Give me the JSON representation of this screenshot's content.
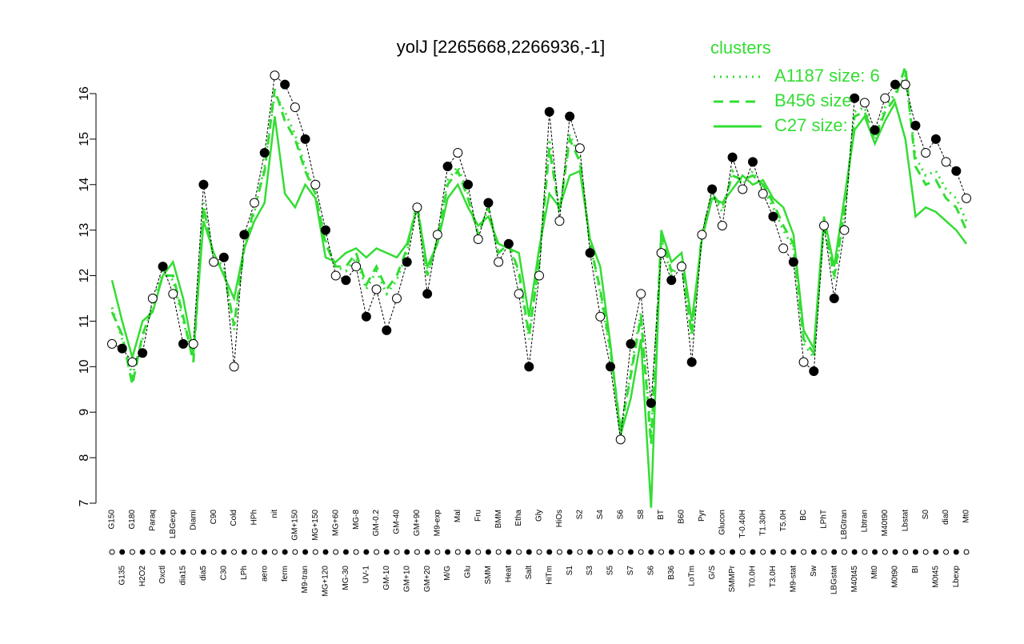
{
  "chart_data": {
    "type": "line",
    "title": "yolJ [2265668,2266936,-1]",
    "legend_title": "clusters",
    "categories": [
      "G150",
      "G135",
      "G180",
      "H2O2",
      "Paraq",
      "Oxctl",
      "LBGexp",
      "dia15",
      "Diami",
      "dia5",
      "C90",
      "C30",
      "Cold",
      "LPh",
      "HPh",
      "aero",
      "nit",
      "ferm",
      "GM+150",
      "M9-tran",
      "MG+150",
      "MG+120",
      "MG+60",
      "MG-30",
      "MG-8",
      "UV-1",
      "GM-0.2",
      "GM-10",
      "GM-40",
      "GM+10",
      "GM+90",
      "GM+20",
      "M9-exp",
      "M/G",
      "Mal",
      "Glu",
      "Fru",
      "SMM",
      "BMM",
      "Heat",
      "Etha",
      "Salt",
      "Gly",
      "HiTm",
      "HiOs",
      "S1",
      "S2",
      "S3",
      "S4",
      "S5",
      "S6",
      "S7",
      "S8",
      "S6",
      "BT",
      "B36",
      "B60",
      "LoTm",
      "Pyr",
      "G/S",
      "Glucon",
      "SMMPr",
      "T-0.40H",
      "T0.0H",
      "T1.30H",
      "T3.0H",
      "T5.0H",
      "M9-stat",
      "BC",
      "Sw",
      "LPhT",
      "LBGstat",
      "LBGtran",
      "M40t45",
      "Lbtran",
      "Mt0",
      "M40t90",
      "M0t90",
      "Lbstat",
      "BI",
      "S0",
      "M0t45",
      "dia0",
      "Lbexp",
      "Mt0"
    ],
    "values": [
      10.5,
      10.4,
      10.1,
      10.3,
      11.5,
      12.2,
      11.6,
      10.5,
      10.5,
      14.0,
      12.3,
      12.4,
      10.0,
      12.9,
      13.6,
      14.7,
      16.4,
      16.2,
      15.7,
      15.0,
      14.0,
      13.0,
      12.0,
      11.9,
      12.2,
      11.1,
      11.7,
      10.8,
      11.5,
      12.3,
      13.5,
      11.6,
      12.9,
      14.4,
      14.7,
      14.0,
      12.8,
      13.6,
      12.3,
      12.7,
      11.6,
      10.0,
      12.0,
      15.6,
      13.2,
      15.5,
      14.8,
      12.5,
      11.1,
      10.0,
      8.4,
      10.5,
      11.6,
      9.2,
      12.5,
      11.9,
      12.2,
      10.1,
      12.9,
      13.9,
      13.1,
      14.6,
      13.9,
      14.5,
      13.8,
      13.3,
      12.6,
      12.3,
      10.1,
      9.9,
      13.1,
      11.5,
      13.0,
      15.9,
      15.8,
      15.2,
      15.9,
      16.2,
      16.2,
      15.3,
      14.7,
      15.0,
      14.5,
      14.3,
      13.7
    ],
    "point_color": "#000000",
    "series": [
      {
        "name": "A1187 size: 6",
        "style": "dotted",
        "color": "#33dd33",
        "values": [
          11.3,
          10.6,
          9.8,
          10.6,
          11.4,
          12.1,
          11.9,
          11.0,
          10.2,
          13.6,
          12.4,
          12.2,
          10.8,
          12.6,
          13.4,
          14.4,
          16.0,
          15.6,
          15.1,
          14.4,
          13.8,
          12.8,
          12.2,
          12.1,
          12.4,
          11.7,
          12.1,
          11.6,
          11.9,
          12.5,
          13.6,
          12.0,
          12.8,
          14.1,
          14.4,
          13.8,
          12.9,
          13.5,
          12.5,
          12.7,
          12.0,
          10.6,
          12.3,
          15.0,
          13.4,
          15.1,
          14.6,
          12.7,
          11.6,
          10.3,
          8.5,
          9.9,
          11.2,
          8.5,
          12.8,
          12.0,
          12.3,
          10.6,
          12.9,
          13.8,
          13.4,
          14.3,
          14.0,
          14.3,
          13.9,
          13.5,
          13.0,
          12.6,
          10.5,
          10.2,
          13.2,
          11.9,
          13.3,
          15.6,
          15.7,
          15.0,
          15.7,
          16.0,
          16.4,
          14.6,
          14.2,
          14.3,
          13.9,
          13.7,
          13.2
        ]
      },
      {
        "name": "B456 size",
        "style": "dashed",
        "color": "#33dd33",
        "values": [
          11.2,
          10.7,
          9.6,
          10.7,
          11.3,
          12.0,
          12.0,
          11.1,
          10.1,
          13.5,
          12.4,
          12.1,
          10.9,
          12.6,
          13.5,
          14.3,
          16.1,
          15.4,
          15.0,
          14.3,
          13.8,
          12.7,
          12.2,
          12.2,
          12.5,
          11.8,
          12.2,
          11.7,
          12.0,
          12.6,
          13.6,
          12.0,
          12.8,
          14.0,
          14.3,
          13.7,
          12.9,
          13.5,
          12.5,
          12.7,
          12.1,
          10.7,
          12.3,
          14.8,
          13.4,
          15.0,
          14.5,
          12.7,
          11.7,
          10.4,
          8.6,
          9.8,
          11.1,
          8.3,
          12.9,
          12.1,
          12.3,
          10.7,
          12.9,
          13.8,
          13.5,
          14.2,
          14.1,
          14.2,
          14.0,
          13.6,
          13.1,
          12.7,
          10.6,
          10.3,
          13.2,
          12.0,
          13.4,
          15.5,
          15.6,
          15.0,
          15.6,
          15.9,
          16.6,
          14.4,
          14.0,
          14.1,
          13.7,
          13.5,
          13.0
        ]
      },
      {
        "name": "C27 size:",
        "style": "solid",
        "color": "#33dd33",
        "values": [
          11.9,
          11.0,
          10.2,
          11.0,
          11.2,
          12.0,
          12.3,
          11.5,
          10.3,
          13.2,
          12.5,
          12.0,
          11.5,
          12.6,
          13.2,
          13.6,
          15.5,
          13.8,
          13.5,
          14.0,
          13.7,
          12.4,
          12.3,
          12.5,
          12.6,
          12.4,
          12.6,
          12.5,
          12.4,
          12.7,
          13.5,
          12.2,
          12.7,
          13.7,
          14.0,
          13.5,
          13.1,
          13.3,
          12.7,
          12.6,
          12.5,
          11.1,
          12.6,
          13.8,
          13.5,
          14.2,
          14.3,
          12.8,
          12.2,
          10.5,
          8.5,
          9.3,
          10.6,
          6.9,
          13.0,
          12.3,
          12.5,
          11.0,
          12.8,
          13.7,
          13.6,
          13.9,
          14.2,
          14.0,
          14.1,
          13.7,
          13.5,
          12.9,
          10.8,
          10.4,
          13.3,
          12.2,
          13.7,
          15.2,
          15.5,
          14.9,
          15.4,
          15.8,
          15.0,
          13.3,
          13.5,
          13.4,
          13.2,
          13.0,
          12.7
        ]
      }
    ],
    "ylim": [
      7,
      16
    ],
    "yticks": [
      7,
      8,
      9,
      10,
      11,
      12,
      13,
      14,
      15,
      16
    ]
  }
}
